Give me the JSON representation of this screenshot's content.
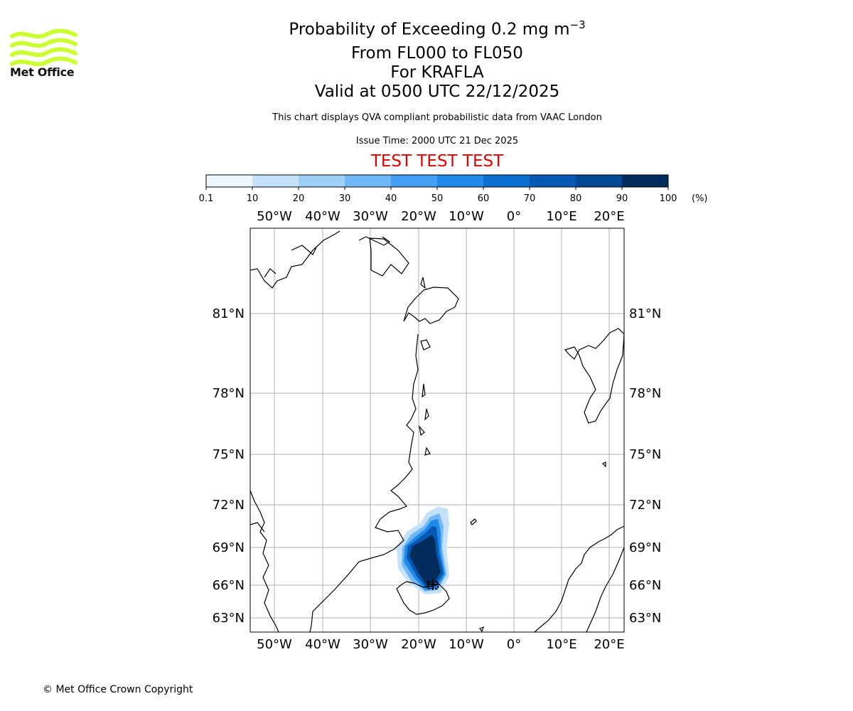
{
  "header": {
    "title_prefix": "Probability of Exceeding 0.2 mg m",
    "title_exponent": "−3",
    "line2": "From FL000 to FL050",
    "line3": "For KRAFLA",
    "line4": "Valid at 0500 UTC 22/12/2025",
    "note": "This chart displays QVA compliant probabilistic data from VAAC London",
    "issue_time": "Issue Time: 2000 UTC 21 Dec 2025",
    "test_banner": "TEST TEST TEST"
  },
  "logo": {
    "text": "Met Office",
    "color": "#ccff33"
  },
  "colorbar": {
    "ticks": [
      "0.1",
      "10",
      "20",
      "30",
      "40",
      "50",
      "60",
      "70",
      "80",
      "90",
      "100"
    ],
    "unit": "(%)",
    "colors": [
      "#eef6ff",
      "#c6e1fa",
      "#a0cff7",
      "#6fb7f5",
      "#43a0f3",
      "#1f8ae8",
      "#0c70d0",
      "#0559b3",
      "#034892",
      "#012c5c"
    ]
  },
  "map": {
    "lon_labels": [
      "50°W",
      "40°W",
      "30°W",
      "20°W",
      "10°W",
      "0°",
      "10°E",
      "20°E"
    ],
    "lat_labels": [
      "81°N",
      "78°N",
      "75°N",
      "72°N",
      "69°N",
      "66°N",
      "63°N"
    ],
    "volcano": "KRAFLA"
  },
  "footer": {
    "copyright": "© Met Office Crown Copyright"
  }
}
